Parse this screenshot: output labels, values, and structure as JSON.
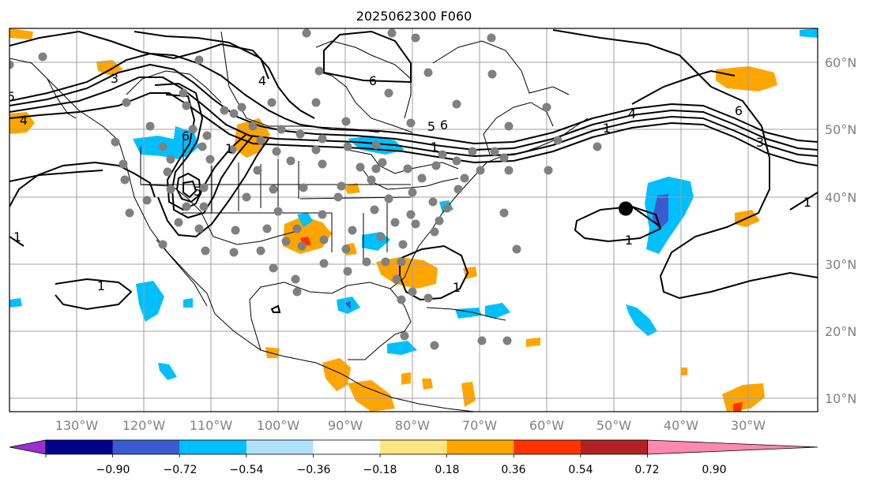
{
  "title": "2025062300 F060",
  "map_extent": {
    "lon_min": -140,
    "lon_max": -20,
    "lat_min": 8,
    "lat_max": 65
  },
  "lon_labels": [
    "130°W",
    "120°W",
    "110°W",
    "100°W",
    "90°W",
    "80°W",
    "70°W",
    "60°W",
    "50°W",
    "40°W",
    "30°W"
  ],
  "lat_labels": [
    "10°N",
    "20°N",
    "30°N",
    "40°N",
    "50°N",
    "60°N"
  ],
  "contour_labels": [
    "3",
    "4",
    "5",
    "6",
    "1",
    "6",
    "5",
    "6",
    "4",
    "6",
    "3",
    "1",
    "4",
    "5",
    "1",
    "1",
    "1",
    "1",
    "1",
    "1"
  ],
  "colorbar": {
    "ticks": [
      "−0.90",
      "−0.72",
      "−0.54",
      "−0.36",
      "−0.18",
      "0.18",
      "0.36",
      "0.54",
      "0.72",
      "0.90"
    ],
    "colors": [
      "#9b30d0",
      "#00008b",
      "#3a5bd0",
      "#00bfff",
      "#b0e0ff",
      "#ffffff",
      "#ffe680",
      "#ffa500",
      "#ff3300",
      "#b22222",
      "#ff88b0"
    ]
  },
  "station_marker": {
    "lon": -48.5,
    "lat": 38.2
  }
}
